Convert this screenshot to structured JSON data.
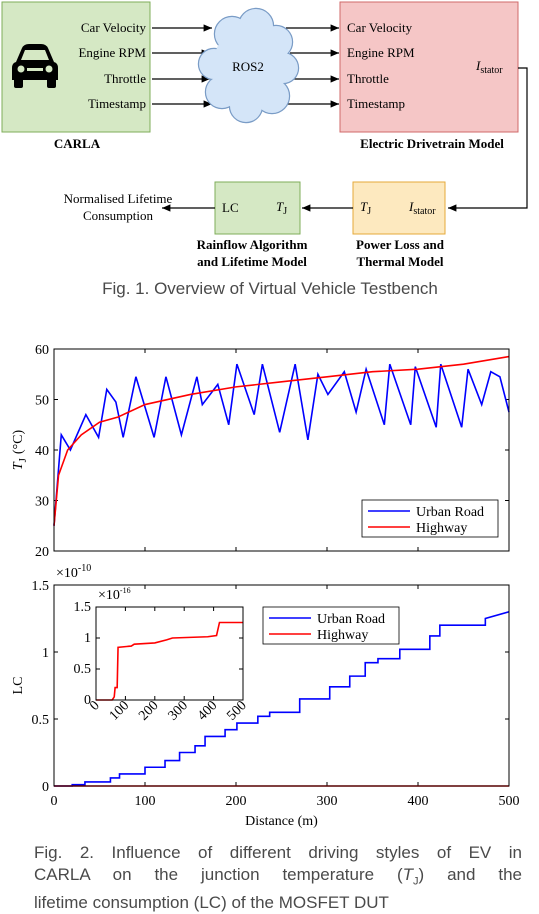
{
  "figure1": {
    "carla": {
      "signals": [
        "Car Velocity",
        "Engine RPM",
        "Throttle",
        "Timestamp"
      ],
      "label": "CARLA"
    },
    "ros": "ROS2",
    "drivetrain": {
      "signals": [
        "Car Velocity",
        "Engine RPM",
        "Throttle",
        "Timestamp"
      ],
      "output": [
        "I",
        "stator"
      ],
      "label": "Electric Drivetrain Model"
    },
    "power_loss": {
      "tj": [
        "T",
        "J"
      ],
      "istator": [
        "I",
        "stator"
      ],
      "label": [
        "Power Loss and",
        "Thermal Model"
      ]
    },
    "rainflow": {
      "lc": "LC",
      "tj": [
        "T",
        "J"
      ],
      "label": [
        "Rainflow Algorithm",
        "and Lifetime Model"
      ]
    },
    "output": [
      "Normalised Lifetime",
      "Consumption"
    ],
    "caption": "Fig. 1. Overview of Virtual Vehicle Testbench"
  },
  "chart_data": [
    {
      "type": "line",
      "ylabel": [
        "T",
        "J",
        "(°C)"
      ],
      "xlim": [
        0,
        500
      ],
      "xticks": [
        0,
        100,
        200,
        300,
        400,
        500
      ],
      "xticklabels": false,
      "ylim": [
        20,
        60
      ],
      "yticks": [
        20,
        30,
        40,
        50,
        60
      ],
      "legend": "lower right",
      "series": [
        {
          "name": "Urban Road",
          "color": "#0000ff",
          "x": [
            0,
            8,
            18,
            35,
            49,
            58,
            68,
            76,
            90,
            110,
            123,
            140,
            157,
            163,
            180,
            192,
            201,
            220,
            229,
            248,
            265,
            279,
            290,
            301,
            319,
            332,
            343,
            363,
            369,
            392,
            397,
            420,
            425,
            448,
            455,
            470,
            480,
            490,
            500
          ],
          "values": [
            25,
            43,
            40,
            47,
            42.5,
            52,
            49.5,
            42.5,
            54.5,
            42.5,
            54.5,
            43,
            54.5,
            49,
            53,
            45,
            57,
            47,
            57,
            43.5,
            57,
            42,
            55,
            51,
            55.5,
            47.5,
            56,
            45,
            57,
            45,
            56.5,
            44.5,
            57,
            44.5,
            56,
            49,
            55.5,
            54.5,
            47.5
          ]
        },
        {
          "name": "Highway",
          "color": "#ff0000",
          "x": [
            0,
            5,
            15,
            30,
            50,
            70,
            100,
            150,
            200,
            250,
            300,
            350,
            400,
            450,
            500
          ],
          "values": [
            25,
            35,
            40,
            43,
            45.5,
            46.5,
            49,
            51,
            52.5,
            53.5,
            54.5,
            55.5,
            56,
            57,
            58.5
          ]
        }
      ]
    },
    {
      "type": "line",
      "ylabel": [
        "LC"
      ],
      "xlabel": "Distance (m)",
      "multiplier": [
        "×10",
        "-10"
      ],
      "xlim": [
        0,
        500
      ],
      "xticks": [
        0,
        100,
        200,
        300,
        400,
        500
      ],
      "ylim": [
        0,
        1.5
      ],
      "yticks": [
        0,
        0.5,
        1,
        1.5
      ],
      "legend": "upper center",
      "series": [
        {
          "name": "Urban Road",
          "color": "#0000ff",
          "x": [
            0,
            20,
            20,
            34,
            34,
            62,
            62,
            72,
            72,
            100,
            100,
            122,
            122,
            138,
            138,
            155,
            155,
            166,
            166,
            188,
            188,
            201,
            201,
            224,
            224,
            237,
            237,
            270,
            270,
            303,
            303,
            325,
            325,
            342,
            342,
            356,
            356,
            380,
            380,
            413,
            413,
            424,
            424,
            474,
            474,
            500
          ],
          "values": [
            0,
            0,
            0.01,
            0.01,
            0.03,
            0.03,
            0.06,
            0.06,
            0.09,
            0.09,
            0.14,
            0.14,
            0.19,
            0.19,
            0.25,
            0.25,
            0.3,
            0.3,
            0.37,
            0.37,
            0.42,
            0.42,
            0.47,
            0.47,
            0.52,
            0.52,
            0.55,
            0.55,
            0.65,
            0.65,
            0.74,
            0.74,
            0.82,
            0.82,
            0.92,
            0.92,
            0.95,
            0.95,
            1.02,
            1.02,
            1.12,
            1.12,
            1.2,
            1.2,
            1.25,
            1.3
          ]
        },
        {
          "name": "Highway",
          "color": "#ff0000",
          "x": [
            0,
            500
          ],
          "values": [
            0,
            0
          ]
        }
      ]
    },
    {
      "type": "line",
      "multiplier": [
        "×10",
        "-16"
      ],
      "xlim": [
        0,
        500
      ],
      "xticks": [
        0,
        100,
        200,
        300,
        400,
        500
      ],
      "ylim": [
        0,
        1.5
      ],
      "yticks": [
        0,
        0.5,
        1,
        1.5
      ],
      "series": [
        {
          "name": "Highway",
          "color": "#ff0000",
          "x": [
            0,
            55,
            62,
            65,
            72,
            75,
            120,
            130,
            200,
            240,
            260,
            380,
            410,
            420,
            500
          ],
          "values": [
            0,
            0,
            0.05,
            0.2,
            0.2,
            0.85,
            0.87,
            0.9,
            0.92,
            0.97,
            1.0,
            1.02,
            1.04,
            1.25,
            1.25
          ]
        }
      ]
    }
  ],
  "figure2_caption": [
    "Fig. 2. Influence of different driving styles of EV in",
    "CARLA on the junction temperature (",
    "T",
    "J",
    ") and the",
    "lifetime consumption (LC) of the MOSFET DUT"
  ]
}
